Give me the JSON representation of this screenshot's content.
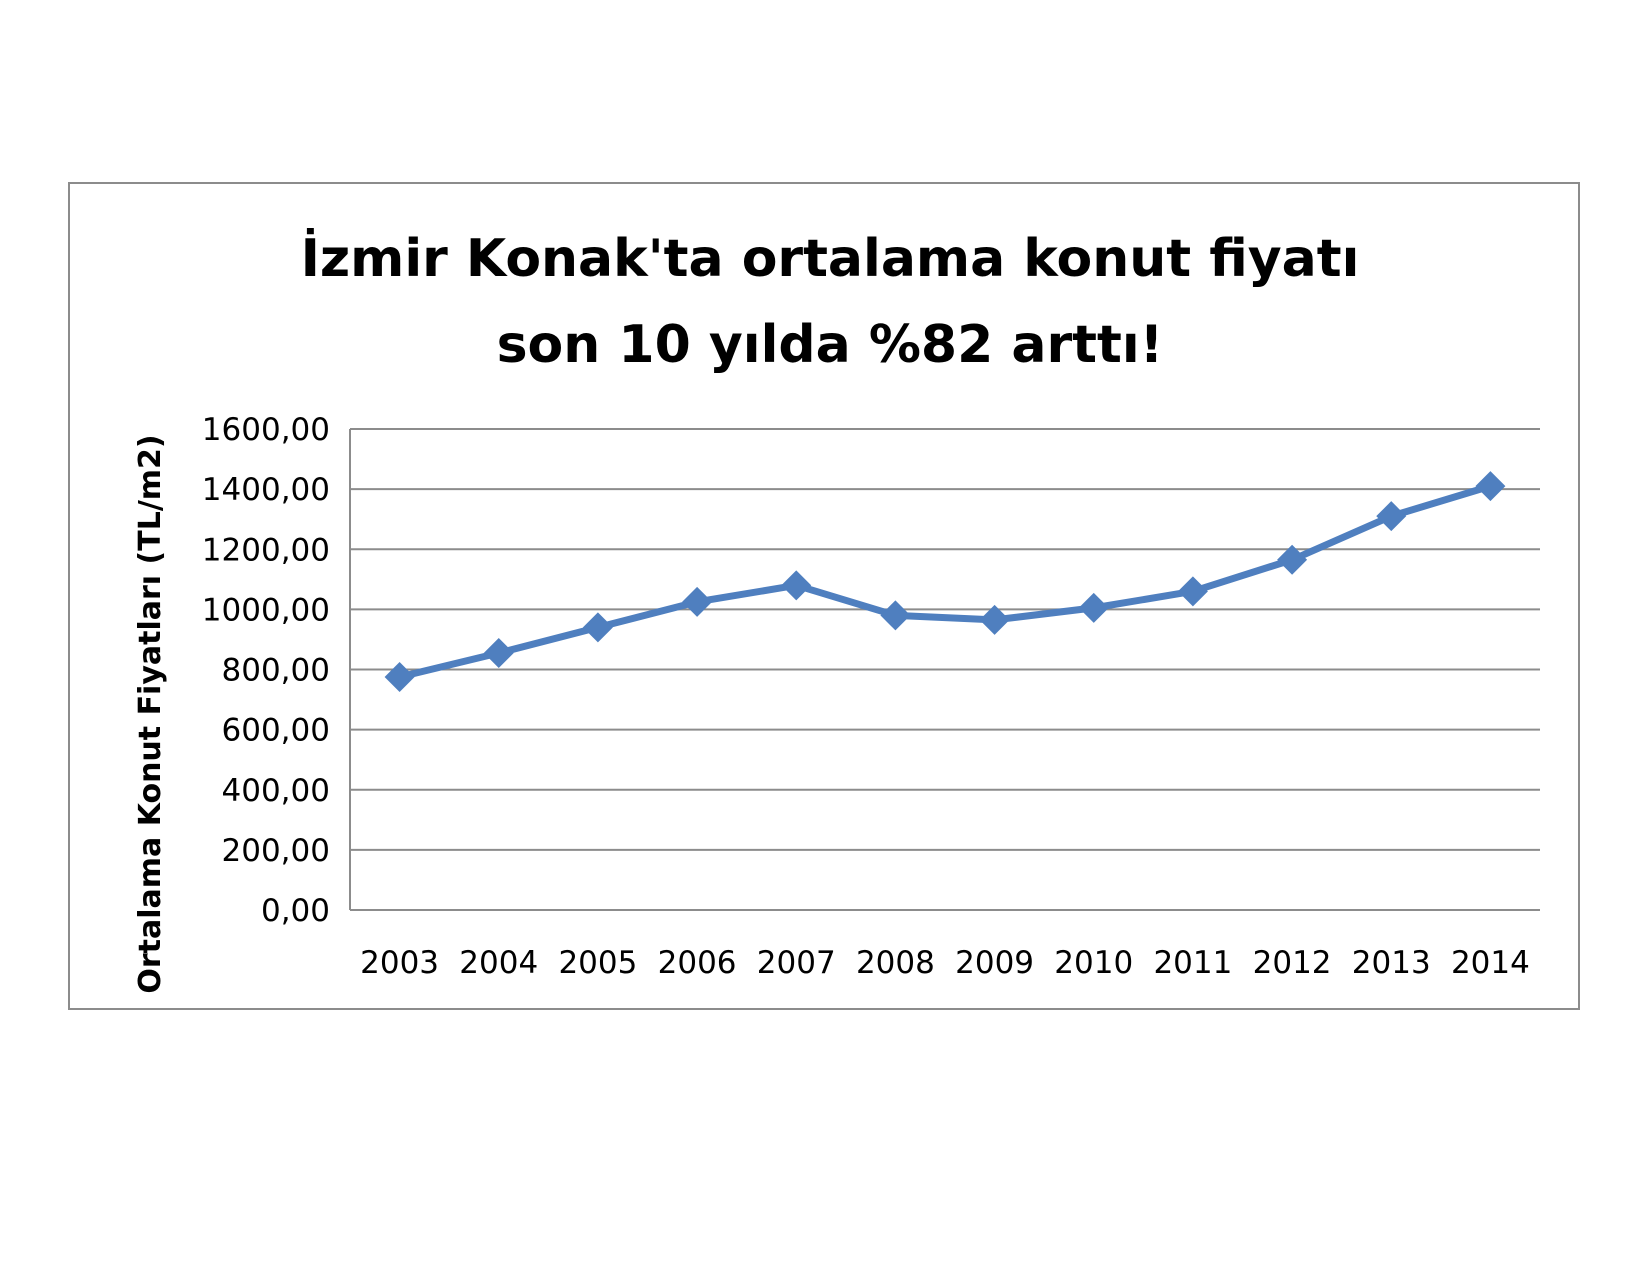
{
  "chart_data": {
    "type": "line",
    "title_lines": [
      "İzmir Konak'ta ortalama konut fiyatı",
      "son 10 yılda %82 arttı!"
    ],
    "xlabel": "",
    "ylabel": "Ortalama Konut Fiyatları (TL/m2)",
    "ylim": [
      0,
      1600
    ],
    "y_ticks": [
      "0,00",
      "200,00",
      "400,00",
      "600,00",
      "800,00",
      "1000,00",
      "1200,00",
      "1400,00",
      "1600,00"
    ],
    "grid": true,
    "legend": "none",
    "categories": [
      "2003",
      "2004",
      "2005",
      "2006",
      "2007",
      "2008",
      "2009",
      "2010",
      "2011",
      "2012",
      "2013",
      "2014"
    ],
    "series": [
      {
        "values": [
          775,
          855,
          940,
          1025,
          1080,
          980,
          965,
          1005,
          1060,
          1165,
          1310,
          1410
        ],
        "color": "#4f7fbf",
        "marker": "diamond"
      }
    ]
  }
}
